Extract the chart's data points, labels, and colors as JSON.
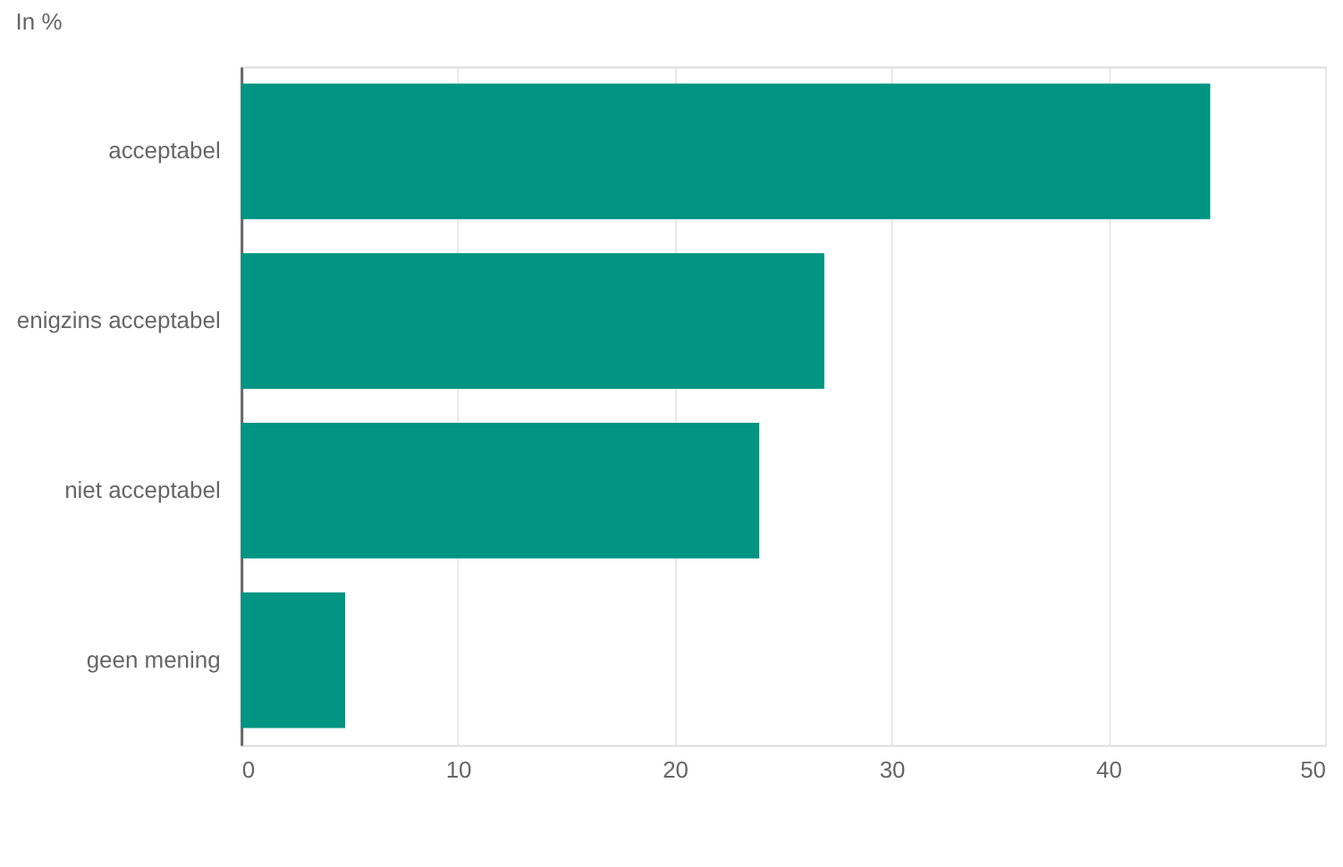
{
  "chart_data": {
    "type": "bar",
    "orientation": "horizontal",
    "title": "In %",
    "categories": [
      "acceptabel",
      "enigzins acceptabel",
      "niet acceptabel",
      "geen mening"
    ],
    "values": [
      44.7,
      26.9,
      23.9,
      4.8
    ],
    "color": "#009482",
    "xlim": [
      0,
      50
    ],
    "xticks": [
      0,
      10,
      20,
      30,
      40,
      50
    ],
    "grid": "x"
  }
}
